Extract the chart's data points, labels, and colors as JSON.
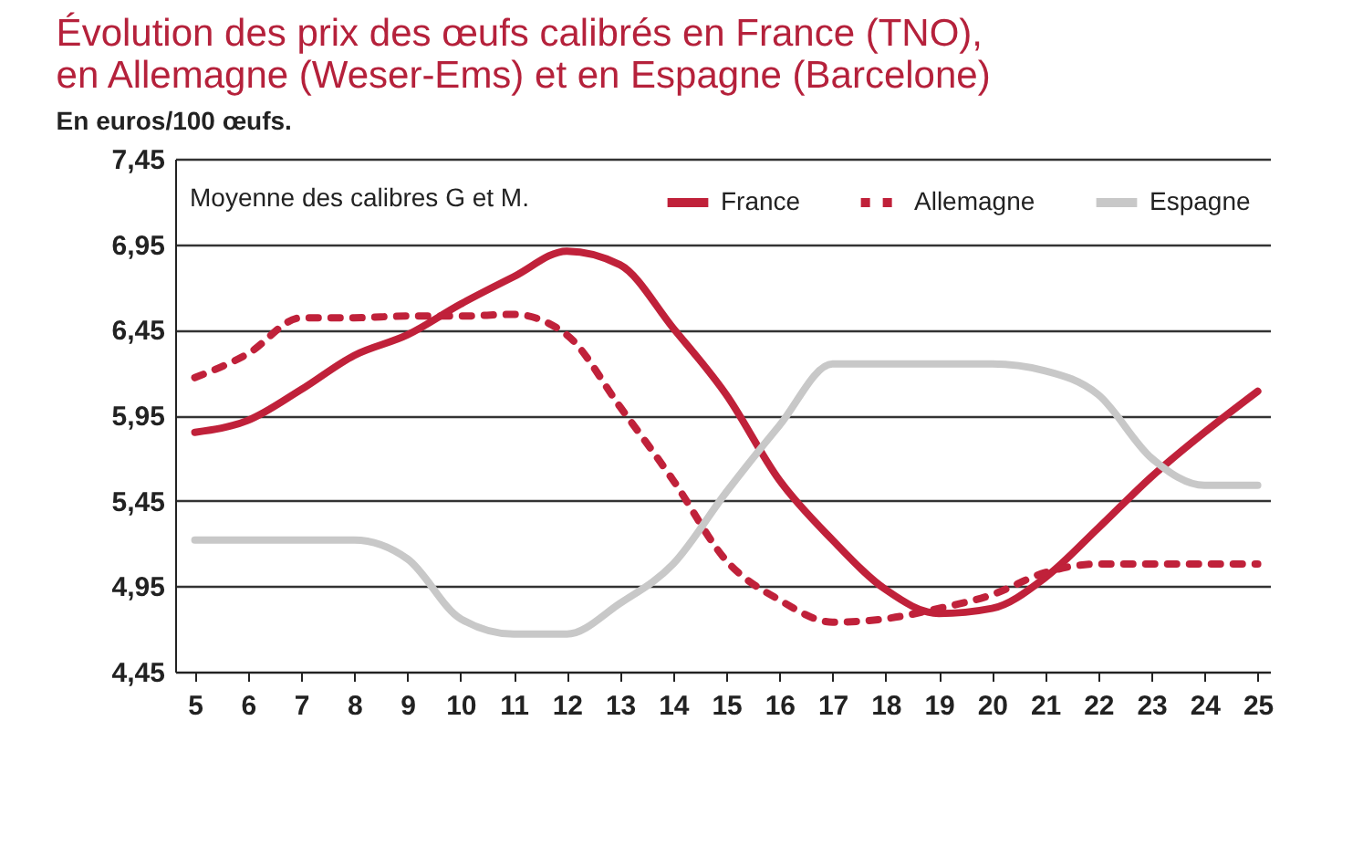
{
  "chart_data": {
    "type": "line",
    "title": [
      "Évolution des prix des œufs calibrés en France (TNO),",
      "en Allemagne (Weser-Ems) et en Espagne (Barcelone)"
    ],
    "ylabel": "En euros/100 œufs.",
    "annotations": [
      "Moyenne des calibres G et M."
    ],
    "x": [
      5,
      6,
      7,
      8,
      9,
      10,
      11,
      12,
      13,
      14,
      15,
      16,
      17,
      18,
      19,
      20,
      21,
      22,
      23,
      24,
      25
    ],
    "series": [
      {
        "name": "France",
        "color": "#c0213a",
        "line_style": "solid",
        "values": [
          5.85,
          5.92,
          6.1,
          6.3,
          6.42,
          6.6,
          6.76,
          6.91,
          6.83,
          6.46,
          6.07,
          5.57,
          5.22,
          4.93,
          4.79,
          4.82,
          5.0,
          5.29,
          5.59,
          5.85,
          6.09
        ]
      },
      {
        "name": "Allemagne",
        "color": "#c0213a",
        "line_style": "dotted",
        "values": [
          6.17,
          6.31,
          6.52,
          6.52,
          6.53,
          6.53,
          6.54,
          6.42,
          6.0,
          5.57,
          5.1,
          4.87,
          4.74,
          4.76,
          4.82,
          4.9,
          5.03,
          5.08,
          5.08,
          5.08,
          5.08
        ]
      },
      {
        "name": "Espagne",
        "color": "#c8c8c8",
        "line_style": "solid",
        "values": [
          5.22,
          5.22,
          5.22,
          5.22,
          5.11,
          4.76,
          4.67,
          4.67,
          4.85,
          5.08,
          5.5,
          5.89,
          6.25,
          6.25,
          6.25,
          6.25,
          6.21,
          6.07,
          5.7,
          5.54,
          5.54
        ]
      }
    ],
    "xlim": [
      4.63,
      25.23
    ],
    "xticks": [
      5,
      6,
      7,
      8,
      9,
      10,
      11,
      12,
      13,
      14,
      15,
      16,
      17,
      18,
      19,
      20,
      21,
      22,
      23,
      24,
      25
    ],
    "ylim": [
      4.45,
      7.45
    ],
    "yticks": [
      {
        "value": 4.45,
        "label": "4,45"
      },
      {
        "value": 4.95,
        "label": "4,95"
      },
      {
        "value": 5.45,
        "label": "5,45"
      },
      {
        "value": 5.95,
        "label": "5,95"
      },
      {
        "value": 6.45,
        "label": "6,45"
      },
      {
        "value": 6.95,
        "label": "6,95"
      },
      {
        "value": 7.45,
        "label": "7,45"
      }
    ],
    "grid": "y",
    "legend": "top right"
  }
}
